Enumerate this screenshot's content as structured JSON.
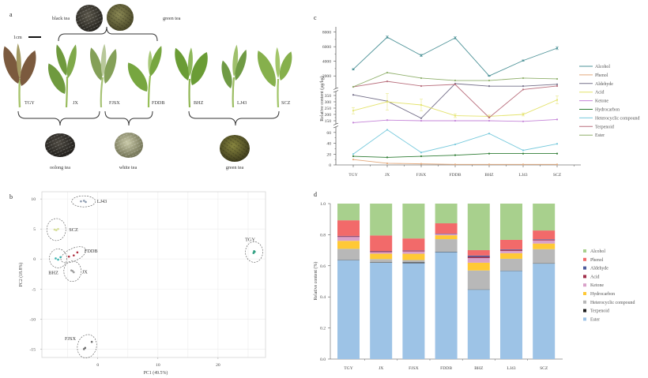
{
  "figure": {
    "panel_labels": [
      "a",
      "b",
      "c",
      "d"
    ]
  },
  "panel_a": {
    "scale_bar_label": "1cm",
    "processed_teas_top": [
      {
        "label": "black tea",
        "icon": "black-tea-pile-icon"
      },
      {
        "label": "green tea",
        "icon": "green-tea-pile-icon"
      }
    ],
    "top_bracket_members": [
      "JX",
      "FJSX",
      "FDDB"
    ],
    "samples": [
      {
        "code": "TGY",
        "leaf_color": "#7b5a3e"
      },
      {
        "code": "JX",
        "leaf_color": "#6f9a3e"
      },
      {
        "code": "FJSX",
        "leaf_color": "#84a058"
      },
      {
        "code": "FDDB",
        "leaf_color": "#77a640"
      },
      {
        "code": "BHZ",
        "leaf_color": "#6a9c35"
      },
      {
        "code": "LJ43",
        "leaf_color": "#6f9a44"
      },
      {
        "code": "SCZ",
        "leaf_color": "#86b04c"
      }
    ],
    "groups": [
      {
        "label": "oolong tea",
        "members": [
          "TGY",
          "JX"
        ],
        "icon": "oolong-tea-pile-icon"
      },
      {
        "label": "white tea",
        "members": [
          "FJSX",
          "FDDB"
        ],
        "icon": "white-tea-pile-icon"
      },
      {
        "label": "green tea",
        "members": [
          "BHZ",
          "LJ43",
          "SCZ"
        ],
        "icon": "green-tea-pile-icon"
      }
    ]
  },
  "chart_data": [
    {
      "panel": "b",
      "type": "scatter",
      "title": "",
      "xlabel": "PC1 (49.5%)",
      "ylabel": "PC2 (18.8%)",
      "xlim": [
        -9.3,
        27.9
      ],
      "ylim": [
        -16.4,
        11.2
      ],
      "xticks": [
        0,
        10,
        20
      ],
      "yticks": [
        10,
        5,
        0,
        -5,
        -10,
        -15
      ],
      "grid": true,
      "confidence_ellipses": true,
      "series": [
        {
          "name": "LJ43",
          "color": "#8d9bb0",
          "points": [
            [
              -2.8,
              9.6
            ],
            [
              -2.3,
              9.7
            ],
            [
              -2.0,
              9.5
            ]
          ]
        },
        {
          "name": "SCZ",
          "color": "#d6de98",
          "points": [
            [
              -7.2,
              4.9
            ],
            [
              -6.6,
              5.0
            ],
            [
              -6.9,
              4.8
            ]
          ]
        },
        {
          "name": "FDDB",
          "color": "#b03040",
          "points": [
            [
              -4.8,
              0.4
            ],
            [
              -4.0,
              0.6
            ],
            [
              -3.4,
              1.1
            ]
          ]
        },
        {
          "name": "BHZ",
          "color": "#3cb4b0",
          "points": [
            [
              -7.0,
              0.1
            ],
            [
              -6.2,
              0.3
            ],
            [
              -6.6,
              -0.1
            ]
          ]
        },
        {
          "name": "JX",
          "color": "#a0a0a0",
          "points": [
            [
              -4.4,
              -1.9
            ],
            [
              -4.0,
              -2.2
            ],
            [
              -4.2,
              -2.0
            ]
          ]
        },
        {
          "name": "TGY",
          "color": "#2e9e80",
          "points": [
            [
              25.9,
              1.0
            ],
            [
              26.1,
              1.2
            ],
            [
              26.0,
              1.3
            ]
          ]
        },
        {
          "name": "FJSX",
          "color": "#707070",
          "points": [
            [
              -2.3,
              -15.0
            ],
            [
              -1.0,
              -13.8
            ],
            [
              -2.1,
              -14.8
            ]
          ]
        }
      ]
    },
    {
      "panel": "c",
      "type": "line",
      "title": "",
      "xlabel": "",
      "ylabel": "Relative content (μg/kg)",
      "categories": [
        "TGY",
        "JX",
        "FJSX",
        "FDDB",
        "BHZ",
        "LJ43",
        "SCZ"
      ],
      "y_axis_segments": [
        [
          0,
          70
        ],
        [
          125,
          375
        ],
        [
          400,
          8500
        ]
      ],
      "yticks": [
        [
          0,
          20,
          40,
          60
        ],
        [
          150,
          200,
          250,
          300,
          350
        ],
        [
          2000,
          4000,
          6000,
          8000
        ]
      ],
      "legend_position": "right",
      "series": [
        {
          "name": "Alcohol",
          "color": "#4e9398",
          "values": [
            2900,
            7300,
            4800,
            7200,
            2000,
            4100,
            5800
          ],
          "error": [
            100,
            150,
            150,
            150,
            60,
            80,
            200
          ]
        },
        {
          "name": "Phenol",
          "color": "#e3a97c",
          "values": [
            10,
            3,
            2,
            1,
            1,
            1,
            1
          ]
        },
        {
          "name": "Aldehyde",
          "color": "#75708a",
          "values": [
            355,
            305,
            170,
            940,
            600,
            600,
            850
          ]
        },
        {
          "name": "Acid",
          "color": "#e4e36c",
          "values": [
            230,
            300,
            275,
            190,
            185,
            200,
            315
          ],
          "error": [
            25,
            65,
            45,
            15,
            10,
            12,
            30
          ]
        },
        {
          "name": "Ketone",
          "color": "#c585d8",
          "values": [
            135,
            155,
            150,
            150,
            150,
            145,
            160
          ]
        },
        {
          "name": "Hydrocarbon",
          "color": "#2f7d35",
          "values": [
            16,
            14,
            16,
            18,
            21,
            21,
            21
          ]
        },
        {
          "name": "Heterocyclic compound",
          "color": "#76c9dc",
          "values": [
            20,
            65,
            23,
            38,
            58,
            27,
            39
          ]
        },
        {
          "name": "Terpenoid",
          "color": "#b96f7d",
          "values": [
            500,
            1250,
            620,
            830,
            175,
            390,
            620
          ]
        },
        {
          "name": "Ester",
          "color": "#90b06c",
          "values": [
            510,
            2450,
            1700,
            1370,
            1370,
            1700,
            1590
          ]
        }
      ]
    },
    {
      "panel": "d",
      "type": "bar",
      "stacked": true,
      "title": "",
      "xlabel": "",
      "ylabel": "Relative content (%)",
      "categories": [
        "TGY",
        "JX",
        "FJSX",
        "FDDB",
        "BHZ",
        "LJ43",
        "SCZ"
      ],
      "ylim": [
        0,
        1.0
      ],
      "yticks": [
        0,
        0.2,
        0.4,
        0.6,
        0.8,
        1.0
      ],
      "ytick_labels": [
        "0.0",
        "0.2",
        "0.4",
        "0.6",
        "0.8",
        "1.0"
      ],
      "legend_position": "right",
      "series": [
        {
          "name": "Alcohol",
          "color": "#a8d08d",
          "values": [
            0.107,
            0.205,
            0.223,
            0.127,
            0.3,
            0.234,
            0.173
          ]
        },
        {
          "name": "Phenol",
          "color": "#f26a6a",
          "values": [
            0.1,
            0.1,
            0.076,
            0.066,
            0.035,
            0.061,
            0.056
          ]
        },
        {
          "name": "Aldehyde",
          "color": "#4e5b9c",
          "values": [
            0.002,
            0.002,
            0.002,
            0.001,
            0.008,
            0.004,
            0.003
          ]
        },
        {
          "name": "Acid",
          "color": "#a12f4b",
          "values": [
            0.005,
            0.005,
            0.005,
            0.002,
            0.008,
            0.006,
            0.005
          ]
        },
        {
          "name": "Ketone",
          "color": "#d9a1c9",
          "values": [
            0.025,
            0.01,
            0.015,
            0.008,
            0.03,
            0.015,
            0.02
          ]
        },
        {
          "name": "Hydrocarbon",
          "color": "#ffc936",
          "values": [
            0.051,
            0.035,
            0.04,
            0.025,
            0.05,
            0.036,
            0.036
          ]
        },
        {
          "name": "Heterocyclic compound",
          "color": "#b8b8b8",
          "values": [
            0.071,
            0.02,
            0.015,
            0.081,
            0.122,
            0.076,
            0.091
          ]
        },
        {
          "name": "Terpenoid",
          "color": "#1e1e1e",
          "values": [
            0.001,
            0.003,
            0.005,
            0.001,
            0.002,
            0.002,
            0.002
          ]
        },
        {
          "name": "Ester",
          "color": "#9dc3e6",
          "values": [
            0.635,
            0.62,
            0.614,
            0.69,
            0.447,
            0.569,
            0.614
          ]
        }
      ]
    }
  ]
}
